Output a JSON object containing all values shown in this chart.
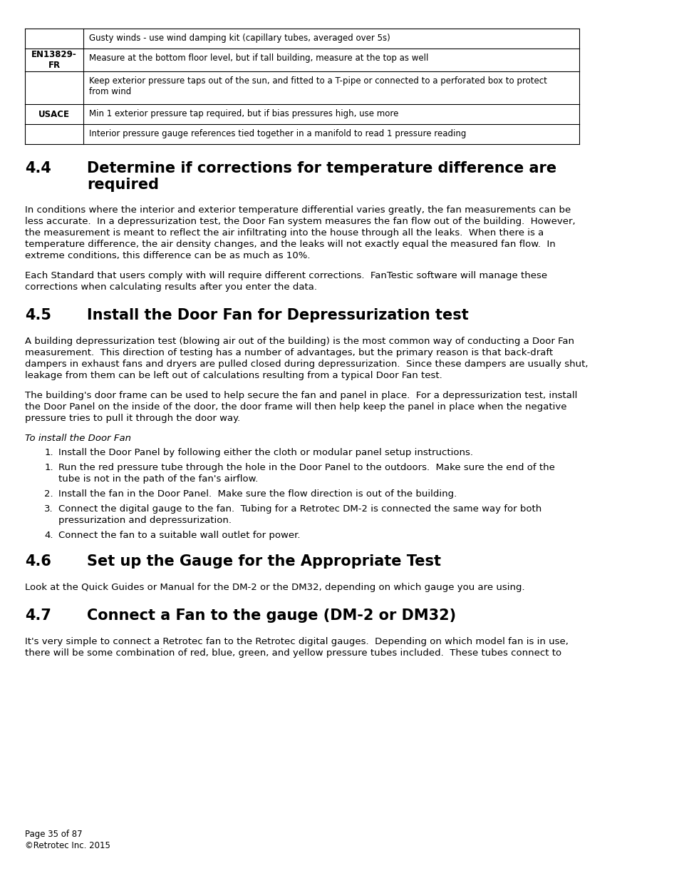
{
  "bg_color": "#ffffff",
  "table": {
    "rows": [
      {
        "label": "",
        "label_bold": false,
        "cells": [
          "Gusty winds - use wind damping kit (capillary tubes, averaged over 5s)"
        ]
      },
      {
        "label": "EN13829-\nFR",
        "label_bold": true,
        "cells": [
          "Measure at the bottom floor level, but if tall building, measure at the top as well"
        ]
      },
      {
        "label": "",
        "label_bold": false,
        "cells": [
          "Keep exterior pressure taps out of the sun, and fitted to a T-pipe or connected to a perforated box to protect\nfrom wind"
        ]
      },
      {
        "label": "USACE",
        "label_bold": true,
        "cells": [
          "Min 1 exterior pressure tap required, but if bias pressures high, use more"
        ]
      },
      {
        "label": "",
        "label_bold": false,
        "cells": [
          "Interior pressure gauge references tied together in a manifold to read 1 pressure reading"
        ]
      }
    ]
  },
  "sections": [
    {
      "heading_num": "4.4",
      "heading_text": "Determine if corrections for temperature difference are\nrequired",
      "paragraphs": [
        "In conditions where the interior and exterior temperature differential varies greatly, the fan measurements can be\nless accurate.  In a depressurization test, the Door Fan system measures the fan flow out of the building.  However,\nthe measurement is meant to reflect the air infiltrating into the house through all the leaks.  When there is a\ntemperature difference, the air density changes, and the leaks will not exactly equal the measured fan flow.  In\nextreme conditions, this difference can be as much as 10%.",
        "Each Standard that users comply with will require different corrections.  FanTestic software will manage these\ncorrections when calculating results after you enter the data."
      ]
    },
    {
      "heading_num": "4.5",
      "heading_text": "Install the Door Fan for Depressurization test",
      "paragraphs": [
        "A building depressurization test (blowing air out of the building) is the most common way of conducting a Door Fan\nmeasurement.  This direction of testing has a number of advantages, but the primary reason is that back-draft\ndampers in exhaust fans and dryers are pulled closed during depressurization.  Since these dampers are usually shut,\nleakage from them can be left out of calculations resulting from a typical Door Fan test.",
        "The building's door frame can be used to help secure the fan and panel in place.  For a depressurization test, install\nthe Door Panel on the inside of the door, the door frame will then help keep the panel in place when the negative\npressure tries to pull it through the door way."
      ],
      "italic_subheading": "To install the Door Fan",
      "list_items": [
        {
          "num": "1.",
          "text": "Install the Door Panel by following either the cloth or modular panel setup instructions."
        },
        {
          "num": "1.",
          "text": "Run the red pressure tube through the hole in the Door Panel to the outdoors.  Make sure the end of the\ntube is not in the path of the fan's airflow."
        },
        {
          "num": "2.",
          "text": "Install the fan in the Door Panel.  Make sure the flow direction is out of the building."
        },
        {
          "num": "3.",
          "text": "Connect the digital gauge to the fan.  Tubing for a Retrotec DM-2 is connected the same way for both\npressurization and depressurization."
        },
        {
          "num": "4.",
          "text": "Connect the fan to a suitable wall outlet for power."
        }
      ]
    },
    {
      "heading_num": "4.6",
      "heading_text": "Set up the Gauge for the Appropriate Test",
      "paragraphs": [
        "Look at the Quick Guides or Manual for the DM-2 or the DM32, depending on which gauge you are using."
      ]
    },
    {
      "heading_num": "4.7",
      "heading_text": "Connect a Fan to the gauge (DM-2 or DM32)",
      "paragraphs": [
        "It's very simple to connect a Retrotec fan to the Retrotec digital gauges.  Depending on which model fan is in use,\nthere will be some combination of red, blue, green, and yellow pressure tubes included.  These tubes connect to"
      ]
    }
  ],
  "footer": "Page 35 of 87\n©Retrotec Inc. 2015"
}
